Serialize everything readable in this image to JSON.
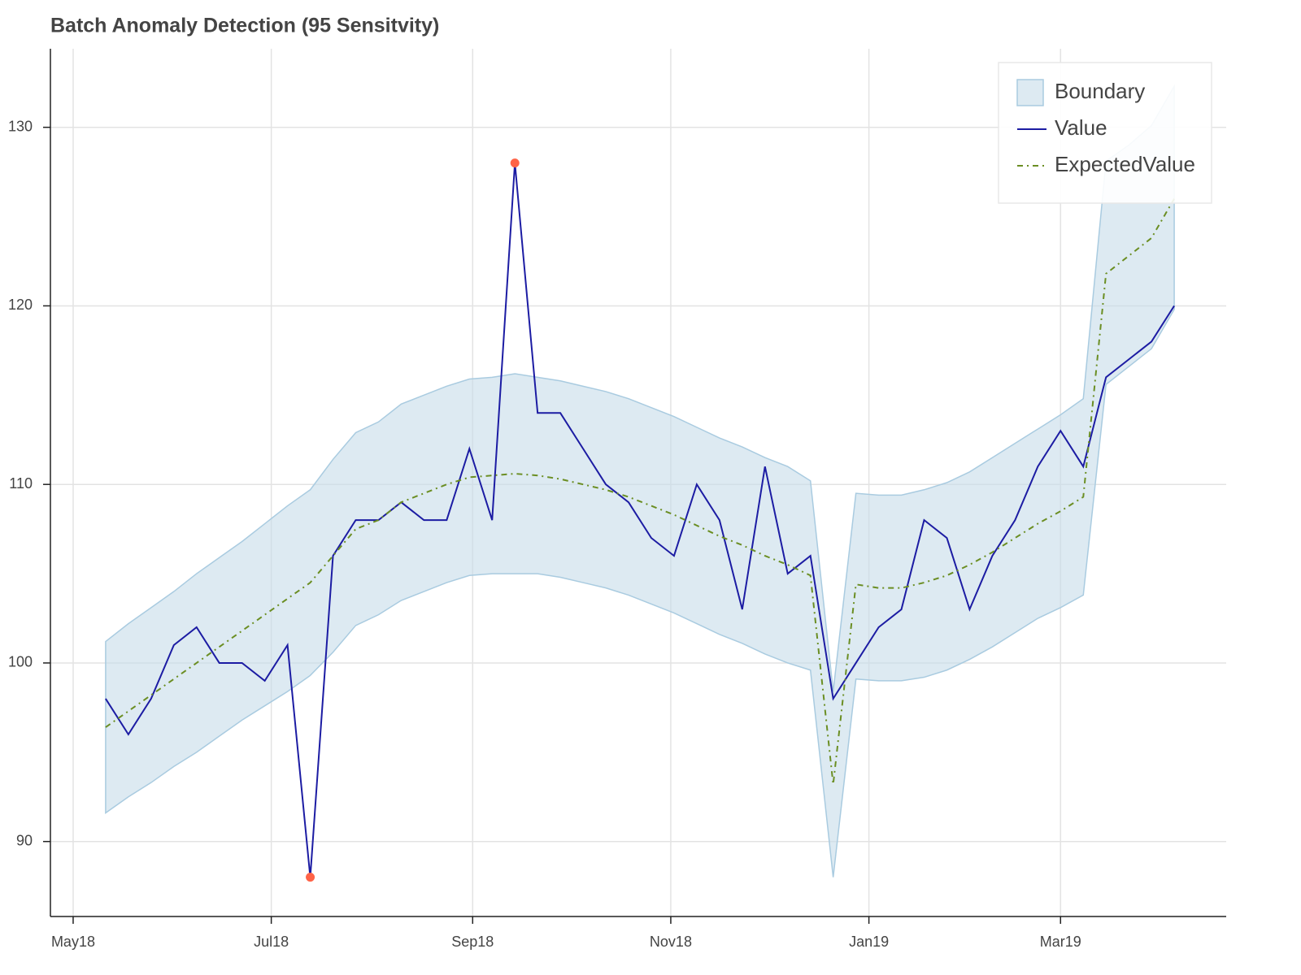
{
  "chart_data": {
    "type": "line",
    "title": "Batch Anomaly Detection (95 Sensitvity)",
    "x": [
      "2018-05-11",
      "2018-05-18",
      "2018-05-25",
      "2018-06-01",
      "2018-06-08",
      "2018-06-15",
      "2018-06-22",
      "2018-06-29",
      "2018-07-06",
      "2018-07-13",
      "2018-07-20",
      "2018-07-27",
      "2018-08-03",
      "2018-08-10",
      "2018-08-17",
      "2018-08-24",
      "2018-08-31",
      "2018-09-07",
      "2018-09-14",
      "2018-09-21",
      "2018-09-28",
      "2018-10-05",
      "2018-10-12",
      "2018-10-19",
      "2018-10-26",
      "2018-11-02",
      "2018-11-09",
      "2018-11-16",
      "2018-11-23",
      "2018-11-30",
      "2018-12-07",
      "2018-12-14",
      "2018-12-21",
      "2018-12-28",
      "2019-01-04",
      "2019-01-11",
      "2019-01-18",
      "2019-01-25",
      "2019-02-01",
      "2019-02-08",
      "2019-02-15",
      "2019-02-22",
      "2019-03-01",
      "2019-03-08",
      "2019-03-15",
      "2019-03-22",
      "2019-03-29",
      "2019-04-05"
    ],
    "series": [
      {
        "name": "Boundary",
        "type": "area",
        "color": "#c6dcea",
        "edge_color": "#a9cbe0",
        "upper": [
          101.2,
          102.2,
          103.1,
          104.0,
          105.0,
          105.9,
          106.8,
          107.8,
          108.8,
          109.7,
          111.4,
          112.9,
          113.5,
          114.5,
          115.0,
          115.5,
          115.9,
          116.0,
          116.2,
          116.0,
          115.8,
          115.5,
          115.2,
          114.8,
          114.3,
          113.8,
          113.2,
          112.6,
          112.1,
          111.5,
          111.0,
          110.2,
          98.4,
          109.5,
          109.4,
          109.4,
          109.7,
          110.1,
          110.7,
          111.5,
          112.3,
          113.1,
          113.9,
          114.8,
          128.1,
          129.0,
          130.1,
          132.3
        ],
        "lower": [
          91.6,
          92.5,
          93.3,
          94.2,
          95.0,
          95.9,
          96.8,
          97.6,
          98.4,
          99.3,
          100.6,
          102.1,
          102.7,
          103.5,
          104.0,
          104.5,
          104.9,
          105.0,
          105.0,
          105.0,
          104.8,
          104.5,
          104.2,
          103.8,
          103.3,
          102.8,
          102.2,
          101.6,
          101.1,
          100.5,
          100.0,
          99.6,
          88.0,
          99.1,
          99.0,
          99.0,
          99.2,
          99.6,
          100.2,
          100.9,
          101.7,
          102.5,
          103.1,
          103.8,
          115.6,
          116.6,
          117.6,
          119.8
        ]
      },
      {
        "name": "Value",
        "type": "line",
        "color": "#1c1ca3",
        "dash": "solid",
        "values": [
          98,
          96,
          98,
          101,
          102,
          100,
          100,
          99,
          101,
          88,
          106,
          108,
          108,
          109,
          108,
          108,
          112,
          108,
          128,
          114,
          114,
          112,
          110,
          109,
          107,
          106,
          110,
          108,
          103,
          111,
          105,
          106,
          98,
          100,
          102,
          103,
          108,
          107,
          103,
          106,
          108,
          111,
          113,
          111,
          116,
          117,
          118,
          120
        ]
      },
      {
        "name": "ExpectedValue",
        "type": "line",
        "color": "#6b8e23",
        "dash": "dashdot",
        "values": [
          96.4,
          97.3,
          98.2,
          99.1,
          100.0,
          100.9,
          101.8,
          102.7,
          103.6,
          104.5,
          106.0,
          107.5,
          108.0,
          109.0,
          109.5,
          110.0,
          110.4,
          110.5,
          110.6,
          110.5,
          110.3,
          110.0,
          109.7,
          109.3,
          108.8,
          108.3,
          107.7,
          107.1,
          106.6,
          106.0,
          105.5,
          104.9,
          93.2,
          104.4,
          104.2,
          104.2,
          104.5,
          104.9,
          105.5,
          106.2,
          107.0,
          107.8,
          108.5,
          109.3,
          121.8,
          122.8,
          123.8,
          126.0
        ]
      },
      {
        "type": "scatter",
        "color": "#ff6347",
        "values": [
          null,
          null,
          null,
          null,
          null,
          null,
          null,
          null,
          null,
          88,
          null,
          null,
          null,
          null,
          null,
          null,
          null,
          null,
          128,
          null,
          null,
          null,
          null,
          null,
          null,
          null,
          null,
          null,
          null,
          null,
          null,
          null,
          null,
          null,
          null,
          null,
          null,
          null,
          null,
          null,
          null,
          null,
          null,
          null,
          null,
          null,
          null,
          null
        ]
      }
    ],
    "xlim": [
      "2018-04-24",
      "2019-04-21"
    ],
    "xticks": [
      {
        "value": "2018-05-01",
        "label": "May18"
      },
      {
        "value": "2018-07-01",
        "label": "Jul18"
      },
      {
        "value": "2018-09-01",
        "label": "Sep18"
      },
      {
        "value": "2018-11-01",
        "label": "Nov18"
      },
      {
        "value": "2019-01-01",
        "label": "Jan19"
      },
      {
        "value": "2019-03-01",
        "label": "Mar19"
      }
    ],
    "ylim": [
      85.8,
      134.4
    ],
    "yticks": [
      90,
      100,
      110,
      120,
      130
    ],
    "grid": true,
    "legend": "top_right"
  }
}
